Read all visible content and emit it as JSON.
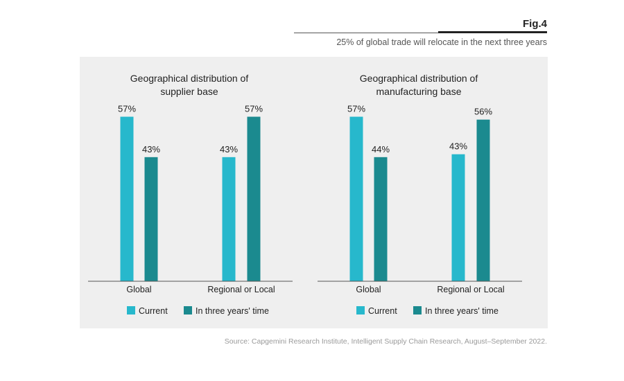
{
  "header": {
    "fig_label": "Fig.4",
    "subtitle": "25% of global trade will relocate in the next three years"
  },
  "source": "Source: Capgemini Research Institute, Intelligent Supply Chain Research, August–September 2022.",
  "colors": {
    "current": "#27b8cc",
    "future": "#1b8a8f",
    "panel_bg": "#efefef"
  },
  "chart_data": [
    {
      "type": "bar",
      "title": "Geographical distribution of supplier base",
      "title_lines": [
        "Geographical distribution of",
        "supplier base"
      ],
      "categories": [
        "Global",
        "Regional or Local"
      ],
      "ylim": [
        0,
        60
      ],
      "series": [
        {
          "name": "Current",
          "values": [
            57,
            43
          ]
        },
        {
          "name": "In three years' time",
          "values": [
            43,
            57
          ]
        }
      ],
      "data_labels": [
        [
          "57%",
          "43%"
        ],
        [
          "43%",
          "57%"
        ]
      ],
      "legend": "bottom"
    },
    {
      "type": "bar",
      "title": "Geographical distribution of manufacturing base",
      "title_lines": [
        "Geographical distribution of",
        "manufacturing base"
      ],
      "categories": [
        "Global",
        "Regional or Local"
      ],
      "ylim": [
        0,
        60
      ],
      "series": [
        {
          "name": "Current",
          "values": [
            57,
            44
          ]
        },
        {
          "name": "In three years' time",
          "values": [
            43,
            56
          ]
        }
      ],
      "data_labels": [
        [
          "57%",
          "44%"
        ],
        [
          "43%",
          "56%"
        ]
      ],
      "legend": "bottom"
    }
  ]
}
